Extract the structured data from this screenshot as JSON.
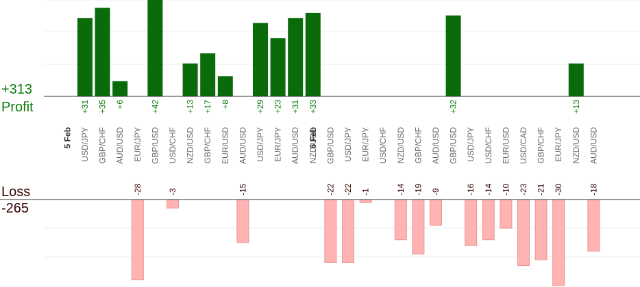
{
  "summary": {
    "profit_total": "+313",
    "profit_label": "Profit",
    "loss_label": "Loss",
    "loss_total": "-265"
  },
  "chart_data": {
    "type": "bar",
    "title": "",
    "xlabel": "",
    "ylabel": "",
    "grid": true,
    "groups": [
      {
        "label": "5 Feb",
        "start": 0
      },
      {
        "label": "6 Feb",
        "start": 14
      }
    ],
    "categories": [
      "USD/JPY",
      "GBP/CHF",
      "AUD/USD",
      "EUR/JPY",
      "GBP/USD",
      "USD/CHF",
      "NZD/USD",
      "GBP/CHF",
      "EUR/USD",
      "AUD/USD",
      "USD/JPY",
      "EUR/JPY",
      "AUD/USD",
      "NZD/USD",
      "GBP/USD",
      "USD/JPY",
      "EUR/JPY",
      "USD/CHF",
      "NZD/USD",
      "GBP/CHF",
      "AUD/USD",
      "GBP/USD",
      "USD/JPY",
      "USD/CHF",
      "EUR/USD",
      "USD/CAD",
      "GBP/CHF",
      "EUR/JPY",
      "NZD/USD",
      "AUD/USD"
    ],
    "series": [
      {
        "values": [
          31,
          35,
          6,
          null,
          42,
          null,
          13,
          17,
          8,
          null,
          29,
          23,
          31,
          33,
          null,
          null,
          null,
          null,
          null,
          null,
          null,
          32,
          null,
          null,
          null,
          null,
          null,
          null,
          13,
          null
        ],
        "labels": [
          "+31",
          "+35",
          "+6",
          "",
          "+42",
          "",
          "+13",
          "+17",
          "+8",
          "",
          "+29",
          "+23",
          "+31",
          "+33",
          "",
          "",
          "",
          "",
          "",
          "",
          "",
          "+32",
          "",
          "",
          "",
          "",
          "",
          "",
          "+13",
          ""
        ],
        "color": "#0a6b0a"
      },
      {
        "values": [
          null,
          null,
          null,
          -28,
          null,
          -3,
          null,
          null,
          null,
          -15,
          null,
          null,
          null,
          null,
          -22,
          -22,
          -1,
          null,
          -14,
          -19,
          -9,
          null,
          -16,
          -14,
          -10,
          -23,
          -21,
          -30,
          null,
          -18
        ],
        "labels": [
          "",
          "",
          "",
          "-28",
          "",
          "-3",
          "",
          "",
          "",
          "-15",
          "",
          "",
          "",
          "",
          "-22",
          "-22",
          "-1",
          "",
          "-14",
          "-19",
          "-9",
          "",
          "-16",
          "-14",
          "-10",
          "-23",
          "-21",
          "-30",
          "",
          "-18"
        ],
        "color": "#ffb3b3"
      }
    ],
    "ylim_profit": [
      0,
      40
    ],
    "ylim_loss": [
      -25,
      0
    ],
    "colors": {
      "profit_bar": "#0a6b0a",
      "profit_text": "#0a7a0a",
      "loss_bar": "#ffb3b3",
      "loss_stroke": "#e89494",
      "loss_text": "#330000",
      "grid": "#ececec",
      "axis": "#333333",
      "category_text": "#666666"
    }
  }
}
